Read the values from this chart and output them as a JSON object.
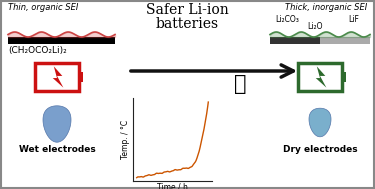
{
  "background_color": "#ffffff",
  "border_color": "#888888",
  "left_title": "Thin, organic SEI",
  "right_title": "Thick, inorganic SEI",
  "center_line1": "Safer Li-ion",
  "center_line2": "batteries",
  "bottom_left_label": "Wet electrodes",
  "bottom_right_label": "Dry electrodes",
  "xlabel": "Time / h",
  "ylabel": "Temp. / °C",
  "left_formula": "(CH₂OCO₂Li)₂",
  "right_formula_1": "Li₂CO₃",
  "right_formula_2": "LiF",
  "right_formula_3": "Li₂O",
  "sei_left_color": "#cc4444",
  "sei_right_color": "#4a8a4a",
  "battery_left_color": "#cc1111",
  "battery_right_color": "#2d6a2d",
  "drop_color_left": "#7a9fcc",
  "drop_color_right": "#7aafcc",
  "plot_line_color": "#cc5500",
  "axis_color": "#222222",
  "arrow_color": "#111111"
}
